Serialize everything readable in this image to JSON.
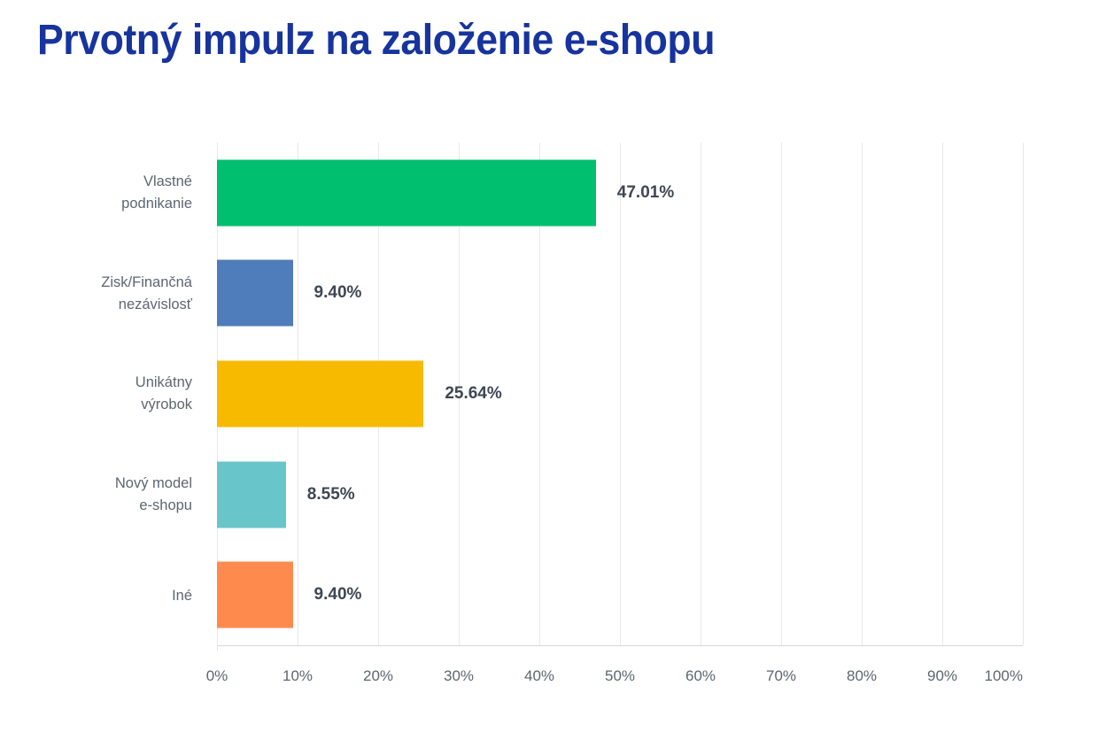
{
  "chart_data": {
    "type": "bar",
    "orientation": "horizontal",
    "title": "Prvotný impulz na založenie e-shopu",
    "categories": [
      "Vlastné\npodnikanie",
      "Zisk/Finančná\nnezávislosť",
      "Unikátny\nvýrobok",
      "Nový model\ne-shopu",
      "Iné"
    ],
    "values": [
      47.01,
      9.4,
      25.64,
      8.55,
      9.4
    ],
    "value_labels": [
      "47.01%",
      "9.40%",
      "25.64%",
      "8.55%",
      "9.40%"
    ],
    "bar_colors": [
      "#00BF6F",
      "#4F7CBA",
      "#F8BA00",
      "#68C5C9",
      "#FF8A4E"
    ],
    "xlabel": "",
    "ylabel": "",
    "xlim": [
      0,
      100
    ],
    "x_ticks": [
      "0%",
      "10%",
      "20%",
      "30%",
      "40%",
      "50%",
      "60%",
      "70%",
      "80%",
      "90%",
      "100%"
    ],
    "grid": "vertical-gridlines-on",
    "legend": "none"
  },
  "colors": {
    "title": "#17349E",
    "category_label": "#5C6670",
    "tick_label": "#5C6670",
    "value_label": "#3E4753",
    "gridline": "#E8E8E8",
    "baseline": "#D9D9D9",
    "background": "#FFFFFF"
  }
}
